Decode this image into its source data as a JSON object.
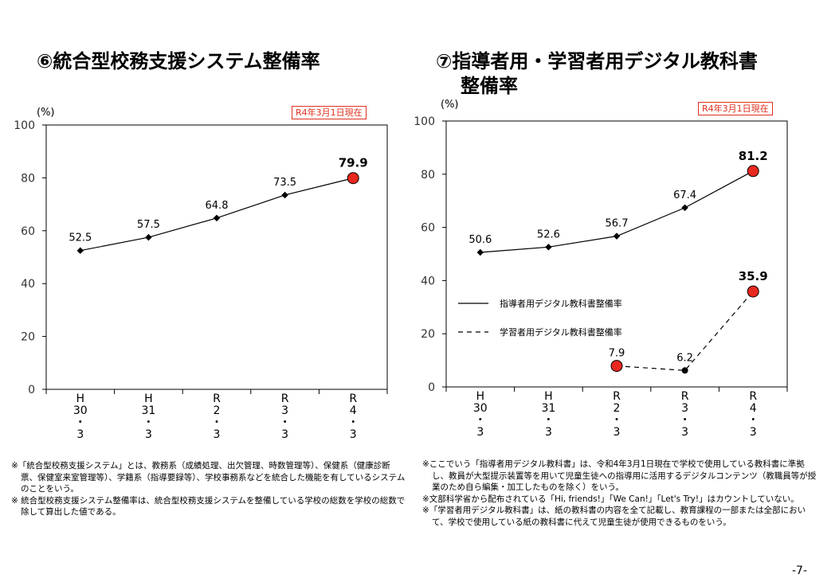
{
  "page_number": "-7-",
  "charts": [
    {
      "title_lines": [
        "⑥統合型校務支援システム整備率"
      ],
      "unit_label": "(%)",
      "badge": "R4年3月1日現在",
      "notes": [
        "※「統合型校務支援システム」とは、教務系（成績処理、出欠管理、時数管理等）、保健系（健康診断票、保健室来室管理等）、学籍系（指導要録等）、学校事務系などを統合した機能を有しているシステムのことをいう。",
        "※ 統合型校務支援システム整備率は、統合型校務支援システムを整備している学校の総数を学校の総数で除して算出した値である。"
      ]
    },
    {
      "title_lines": [
        "⑦指導者用・学習者用デジタル教科書",
        "整備率"
      ],
      "unit_label": "(%)",
      "badge": "R4年3月1日現在",
      "notes": [
        "※ここでいう「指導者用デジタル教科書」は、令和4年3月1日現在で学校で使用している教科書に準拠し、教員が大型提示装置等を用いて児童生徒への指導用に活用するデジタルコンテンツ（教職員等が授業のため自ら編集・加工したものを除く）をいう。",
        "※文部科学省から配布されている「Hi, friends!」「We Can!」「Let's Try!」はカウントしていない。",
        "※「学習者用デジタル教科書」は、紙の教科書の内容を全て記載し、教育課程の一部または全部において、学校で使用している紙の教科書に代えて児童生徒が使用できるものをいう。"
      ]
    }
  ],
  "chart_data": [
    {
      "type": "line",
      "categories": [
        "H30.3",
        "H31.3",
        "R2.3",
        "R3.3",
        "R4.3"
      ],
      "category_label_lines": [
        [
          "H",
          "30",
          "・",
          "3"
        ],
        [
          "H",
          "31",
          "・",
          "3"
        ],
        [
          "R",
          "2",
          "・",
          "3"
        ],
        [
          "R",
          "3",
          "・",
          "3"
        ],
        [
          "R",
          "4",
          "・",
          "3"
        ]
      ],
      "yticks": [
        0,
        20,
        40,
        60,
        80,
        100
      ],
      "ylim": [
        0,
        100
      ],
      "legend": "none",
      "series": [
        {
          "values": [
            52.5,
            57.5,
            64.8,
            73.5,
            79.9
          ],
          "labels": [
            "52.5",
            "57.5",
            "64.8",
            "73.5",
            "79.9"
          ],
          "dashed": false,
          "highlight_color": "#e8281e"
        }
      ]
    },
    {
      "type": "line",
      "categories": [
        "H30.3",
        "H31.3",
        "R2.3",
        "R3.3",
        "R4.3"
      ],
      "category_label_lines": [
        [
          "H",
          "30",
          "・",
          "3"
        ],
        [
          "H",
          "31",
          "・",
          "3"
        ],
        [
          "R",
          "2",
          "・",
          "3"
        ],
        [
          "R",
          "3",
          "・",
          "3"
        ],
        [
          "R",
          "4",
          "・",
          "3"
        ]
      ],
      "yticks": [
        0,
        20,
        40,
        60,
        80,
        100
      ],
      "ylim": [
        0,
        100
      ],
      "legend": "center-left",
      "series": [
        {
          "name": "指導者用デジタル教科書整備率",
          "values": [
            50.6,
            52.6,
            56.7,
            67.4,
            81.2
          ],
          "labels": [
            "50.6",
            "52.6",
            "56.7",
            "67.4",
            "81.2"
          ],
          "dashed": false,
          "highlight_color": "#e8281e"
        },
        {
          "name": "学習者用デジタル教科書整備率",
          "values": [
            null,
            null,
            7.9,
            6.2,
            35.9
          ],
          "labels": [
            "",
            "",
            "7.9",
            "6.2",
            "35.9"
          ],
          "dashed": true,
          "highlight_color": "#e8281e"
        }
      ]
    }
  ]
}
